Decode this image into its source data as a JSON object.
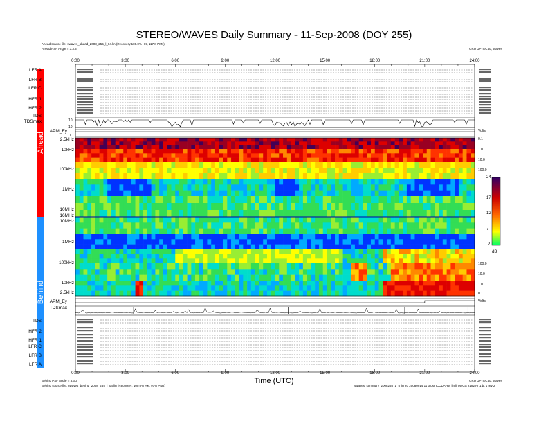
{
  "header": {
    "title": "STEREO/WAVES Daily Summary - 11-Sep-2008 (DOY 255)",
    "ahead_source": "Ahead source file: swaves_ahead_2008_255_l_04.lin (Recovery:100.0% HK, 117% PMs)",
    "ahead_psf": "Ahead PSF Angle = 3.3.3",
    "credit_top": "GRU UPTEC to, Waves"
  },
  "footer": {
    "behind_psf": "Behind PSF Angle = 3.3.3",
    "behind_source": "Behind source file: swaves_behind_2008_255_l_04.lin (Recovery: 100.0% HK, 97% PMs)",
    "right_note": "swaves_summary_2008255_1_5 lin 20 20080914 11 3 dsr ICCDAHW lin lin WGS 2182 Pr 1 bt 1 rev 2",
    "credit_bottom": "GRU UPTEC to, Waves"
  },
  "sidebar": {
    "ahead": "Ahead",
    "behind": "Behind"
  },
  "colorbar": {
    "ticks": [
      "24",
      "17",
      "12",
      "7",
      "2"
    ],
    "unit": "dB"
  },
  "chart_data": {
    "type": "heatmap",
    "title": "STEREO/WAVES Daily Summary - 11-Sep-2008 (DOY 255)",
    "xlabel": "Time (UTC)",
    "xticks": [
      "0:00",
      "3:00",
      "6:00",
      "9:00",
      "12:00",
      "15:00",
      "18:00",
      "21:00",
      "24:00"
    ],
    "xlim": [
      0,
      24
    ],
    "ahead": {
      "rows_top": [
        "LFR A",
        "LFR B",
        "LFR C",
        "HFR 1",
        "HFR 2",
        "TDS",
        "TDSmax",
        "APM_Ey"
      ],
      "tdsmax_ticks": [
        "10",
        "10"
      ],
      "apm_ticks": [
        "1"
      ],
      "freq_labels": [
        "2.5kHz",
        "10kHz",
        "100kHz",
        "1MHz",
        "10MHz",
        "16MHz"
      ]
    },
    "behind": {
      "freq_labels": [
        "1MHz",
        "100kHz",
        "10kHz",
        "2.5kHz"
      ],
      "rows_bottom": [
        "APM_Ey",
        "TDSmax",
        "TDS",
        "HFR 2",
        "HFR 1",
        "LFR C",
        "LFR B",
        "LFR A"
      ]
    },
    "right_axis": {
      "ahead_ticks": [
        "0.1",
        "1.0",
        "10.0",
        "100.0"
      ],
      "behind_ticks": [
        "100.0",
        "10.0",
        "1.0",
        "0.1"
      ],
      "units": [
        "Volts",
        "Volts"
      ]
    },
    "colorbar_range_db": [
      2,
      24
    ],
    "features": {
      "ahead_low_freq_intense_band": "red/orange across full day",
      "behind_low_freq_enhancement_hours": [
        17,
        24
      ]
    }
  }
}
